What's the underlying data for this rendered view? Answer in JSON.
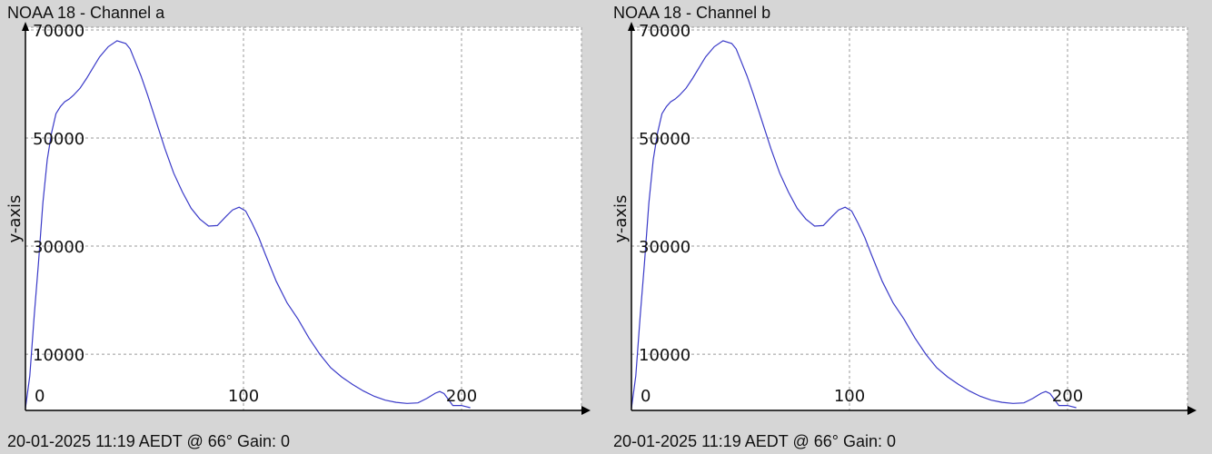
{
  "chart_data": [
    {
      "type": "line",
      "title": "NOAA 18 - Channel a",
      "footer": "20-01-2025 11:19 AEDT @ 66° Gain: 0",
      "ylabel": "y-axis",
      "xlabel": "",
      "xlim": [
        0,
        255
      ],
      "ylim": [
        -400,
        70500
      ],
      "x_ticks": [
        0,
        100,
        200
      ],
      "y_ticks": [
        10000,
        30000,
        50000,
        70000
      ],
      "grid": true,
      "series_color": "#3a3ac8",
      "series": [
        {
          "x": [
            0,
            2,
            4,
            6,
            8,
            10,
            12,
            14,
            16,
            18,
            20,
            22,
            25,
            28,
            31,
            34,
            38,
            42,
            46,
            48,
            50,
            53,
            56,
            60,
            64,
            68,
            72,
            76,
            80,
            84,
            88,
            92,
            95,
            98,
            101,
            104,
            107,
            110,
            115,
            120,
            125,
            130,
            135,
            140,
            145,
            150,
            155,
            160,
            165,
            170,
            175,
            180,
            184,
            188,
            190,
            192,
            196,
            200,
            202,
            204
          ],
          "y": [
            0,
            6000,
            17000,
            27000,
            38000,
            46000,
            51000,
            54500,
            55800,
            56700,
            57200,
            57900,
            59200,
            61000,
            63000,
            65000,
            66900,
            68000,
            67500,
            66500,
            64500,
            61500,
            58000,
            53000,
            48000,
            43500,
            40000,
            37000,
            35000,
            33700,
            33800,
            35500,
            36700,
            37200,
            36500,
            34200,
            31600,
            28500,
            23500,
            19500,
            16500,
            13000,
            10000,
            7500,
            5800,
            4400,
            3200,
            2200,
            1500,
            1100,
            900,
            1000,
            1800,
            2800,
            3100,
            2700,
            500,
            500,
            300,
            100
          ]
        }
      ]
    },
    {
      "type": "line",
      "title": "NOAA 18 - Channel b",
      "footer": "20-01-2025 11:19 AEDT @ 66° Gain: 0",
      "ylabel": "y-axis",
      "xlabel": "",
      "xlim": [
        0,
        255
      ],
      "ylim": [
        -400,
        70500
      ],
      "x_ticks": [
        0,
        100,
        200
      ],
      "y_ticks": [
        10000,
        30000,
        50000,
        70000
      ],
      "grid": true,
      "series_color": "#3a3ac8",
      "series": [
        {
          "x": [
            0,
            2,
            4,
            6,
            8,
            10,
            12,
            14,
            16,
            18,
            20,
            22,
            25,
            28,
            31,
            34,
            38,
            42,
            46,
            48,
            50,
            53,
            56,
            60,
            64,
            68,
            72,
            76,
            80,
            84,
            88,
            92,
            95,
            98,
            101,
            104,
            107,
            110,
            115,
            120,
            125,
            130,
            135,
            140,
            145,
            150,
            155,
            160,
            165,
            170,
            175,
            180,
            184,
            188,
            190,
            192,
            196,
            200,
            202,
            204
          ],
          "y": [
            0,
            6000,
            17000,
            27000,
            38000,
            46000,
            51000,
            54500,
            55800,
            56700,
            57200,
            57900,
            59200,
            61000,
            63000,
            65000,
            66900,
            68000,
            67500,
            66500,
            64500,
            61500,
            58000,
            53000,
            48000,
            43500,
            40000,
            37000,
            35000,
            33700,
            33800,
            35500,
            36700,
            37200,
            36500,
            34200,
            31600,
            28500,
            23500,
            19500,
            16500,
            13000,
            10000,
            7500,
            5800,
            4400,
            3200,
            2200,
            1500,
            1100,
            900,
            1000,
            1800,
            2800,
            3100,
            2700,
            500,
            500,
            300,
            100
          ]
        }
      ]
    }
  ]
}
